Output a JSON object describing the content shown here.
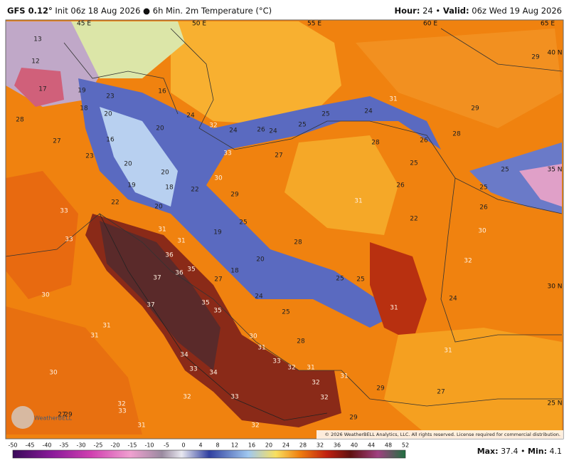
{
  "header": {
    "model": "GFS 0.12°",
    "description": "Init 06z 18 Aug 2026 ● 6h Min. 2m Temperature (°C)",
    "hour_label": "Hour:",
    "hour": "24",
    "valid_label": "Valid:",
    "valid": "06z Wed 19 Aug 2026"
  },
  "grid_labels": [
    "45 E",
    "50 E",
    "55 E",
    "60 E",
    "65 E",
    "40 N",
    "35 N",
    "30 N",
    "25 N"
  ],
  "map_labels": [
    13,
    12,
    17,
    19,
    23,
    18,
    20,
    16,
    24,
    32,
    24,
    26,
    24,
    25,
    25,
    31,
    24,
    29,
    28,
    26,
    28,
    25,
    25,
    25,
    26,
    30,
    28,
    27,
    16,
    20,
    23,
    20,
    20,
    18,
    19,
    22,
    22,
    20,
    29,
    33,
    27,
    30,
    26,
    31,
    22,
    25,
    31,
    33,
    33,
    19,
    28,
    20,
    36,
    31,
    37,
    36,
    35,
    27,
    18,
    25,
    25,
    24,
    25,
    32,
    24,
    31,
    30,
    37,
    35,
    35,
    31,
    31,
    30,
    28,
    31,
    34,
    33,
    32,
    31,
    31,
    33,
    34,
    30,
    32,
    31,
    32,
    33,
    32,
    29,
    27,
    32,
    33,
    27,
    29,
    29,
    32,
    31,
    29
  ],
  "copyright": "© 2026 WeatherBELL Analytics, LLC. All rights reserved. License required for commercial distribution.",
  "logo": "WeatherBELL",
  "colorbar_labels": [
    "-50",
    "-45",
    "-40",
    "-35",
    "-30",
    "-25",
    "-20",
    "-15",
    "-10",
    "-5",
    "0",
    "4",
    "8",
    "12",
    "16",
    "20",
    "24",
    "28",
    "32",
    "36",
    "40",
    "44",
    "48",
    "52"
  ],
  "footer": {
    "max_label": "Max:",
    "max": "37.4",
    "min_label": "Min:",
    "min": "4.1"
  }
}
